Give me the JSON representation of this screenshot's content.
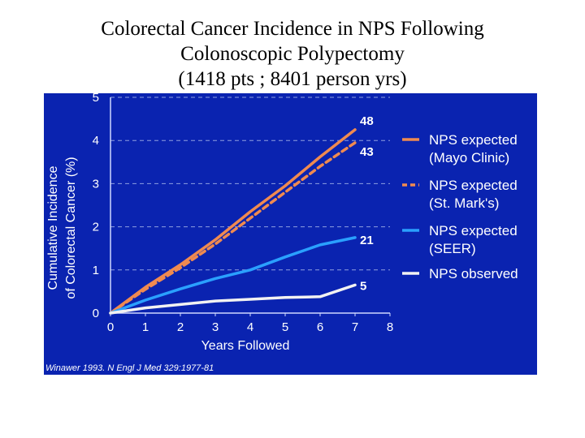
{
  "title": {
    "lines": [
      "Colorectal Cancer Incidence in NPS Following",
      "Colonoscopic Polypectomy",
      "(1418 pts ; 8401 person yrs)"
    ]
  },
  "citation": "Winawer 1993. N Engl J Med 329:1977-81",
  "colors": {
    "plot_background": "#0a23b0",
    "mayo": "#f08a50",
    "st_marks": "#f08a50",
    "seer": "#2aa0ff",
    "observed": "#f2f2f2",
    "axis_text": "#ffffff",
    "grid": "#8fa0e0"
  },
  "chart_data": {
    "type": "line",
    "title": "",
    "xlabel": "Years Followed",
    "ylabel": [
      "Cumulative Incidence",
      "of Colorectal Cancer (%)"
    ],
    "xlim": [
      0,
      8
    ],
    "ylim": [
      0,
      5
    ],
    "x_ticks": [
      "0",
      "1",
      "2",
      "3",
      "4",
      "5",
      "6",
      "7",
      "8"
    ],
    "y_ticks": [
      "0",
      "1",
      "2",
      "3",
      "4",
      "5"
    ],
    "grid": "horizontal dashed",
    "legend_position": "right",
    "series": [
      {
        "key": "mayo",
        "name": "NPS expected (Mayo Clinic)",
        "legend_lines": [
          "NPS expected",
          "(Mayo Clinic)"
        ],
        "style": "solid",
        "end_label": "48",
        "points": [
          [
            0,
            0
          ],
          [
            1,
            0.6
          ],
          [
            2,
            1.12
          ],
          [
            3,
            1.7
          ],
          [
            4,
            2.35
          ],
          [
            5,
            2.95
          ],
          [
            6,
            3.62
          ],
          [
            7,
            4.25
          ]
        ]
      },
      {
        "key": "st_marks",
        "name": "NPS expected (St. Mark's)",
        "legend_lines": [
          "NPS expected",
          "(St. Mark's)"
        ],
        "style": "dashed",
        "end_label": "43",
        "points": [
          [
            0,
            0
          ],
          [
            1,
            0.55
          ],
          [
            2,
            1.05
          ],
          [
            3,
            1.6
          ],
          [
            4,
            2.2
          ],
          [
            5,
            2.8
          ],
          [
            6,
            3.4
          ],
          [
            7,
            3.95
          ]
        ]
      },
      {
        "key": "seer",
        "name": "NPS expected (SEER)",
        "legend_lines": [
          "NPS expected",
          "(SEER)"
        ],
        "style": "solid",
        "end_label": "21",
        "points": [
          [
            0,
            0
          ],
          [
            1,
            0.3
          ],
          [
            2,
            0.56
          ],
          [
            3,
            0.8
          ],
          [
            4,
            1.0
          ],
          [
            5,
            1.3
          ],
          [
            6,
            1.58
          ],
          [
            7,
            1.75
          ]
        ]
      },
      {
        "key": "observed",
        "name": "NPS observed",
        "legend_lines": [
          "NPS observed"
        ],
        "style": "solid",
        "end_label": "5",
        "points": [
          [
            0,
            0
          ],
          [
            1,
            0.12
          ],
          [
            2,
            0.2
          ],
          [
            3,
            0.28
          ],
          [
            4,
            0.32
          ],
          [
            5,
            0.36
          ],
          [
            6,
            0.38
          ],
          [
            7,
            0.65
          ]
        ]
      }
    ]
  }
}
